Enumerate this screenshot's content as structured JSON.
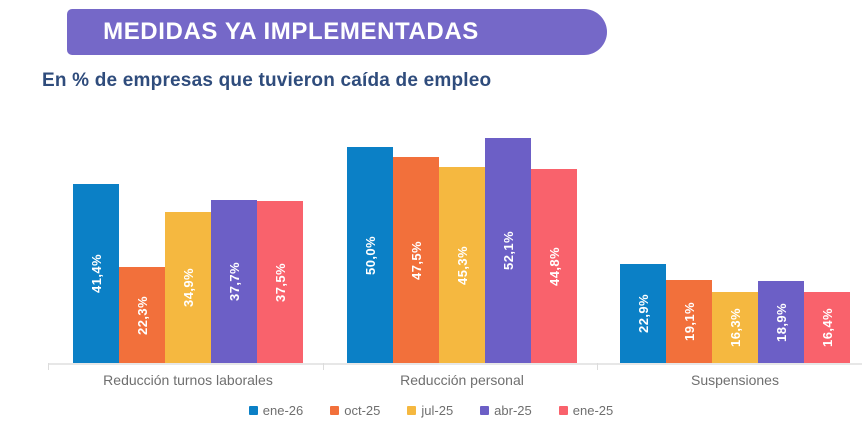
{
  "banner": {
    "title": "MEDIDAS YA IMPLEMENTADAS",
    "background_color": "#7568C8",
    "text_color": "#FFFFFF"
  },
  "subtitle": {
    "text": "En % de empresas que tuvieron caída de empleo",
    "color": "#2F4C7C"
  },
  "chart_data": {
    "type": "bar",
    "title": "MEDIDAS YA IMPLEMENTADAS",
    "subtitle": "En % de empresas que tuvieron caída de empleo",
    "categories": [
      "Reducción turnos laborales",
      "Reducción personal",
      "Suspensiones"
    ],
    "series": [
      {
        "name": "ene-26",
        "color": "#0B80C6",
        "values": [
          41.4,
          50.0,
          22.9
        ],
        "labels": [
          "41,4%",
          "50,0%",
          "22,9%"
        ]
      },
      {
        "name": "oct-25",
        "color": "#F2703B",
        "values": [
          22.3,
          47.5,
          19.1
        ],
        "labels": [
          "22,3%",
          "47,5%",
          "19,1%"
        ]
      },
      {
        "name": "jul-25",
        "color": "#F5B840",
        "values": [
          34.9,
          45.3,
          16.3
        ],
        "labels": [
          "34,9%",
          "45,3%",
          "16,3%"
        ]
      },
      {
        "name": "abr-25",
        "color": "#6C5FC6",
        "values": [
          37.7,
          52.1,
          18.9
        ],
        "labels": [
          "37,7%",
          "52,1%",
          "18,9%"
        ]
      },
      {
        "name": "ene-25",
        "color": "#F9626C",
        "values": [
          37.5,
          44.8,
          16.4
        ],
        "labels": [
          "37,5%",
          "44,8%",
          "16,4%"
        ]
      }
    ],
    "ylim": [
      0,
      55
    ],
    "grid": false,
    "legend_position": "bottom",
    "value_labels": "inside, rotated 90°, white bold",
    "decimal_separator": ",",
    "axis_color": "#E7E7E7",
    "category_label_color": "#6F6F6F",
    "legend_text_color": "#6F6F6F"
  }
}
